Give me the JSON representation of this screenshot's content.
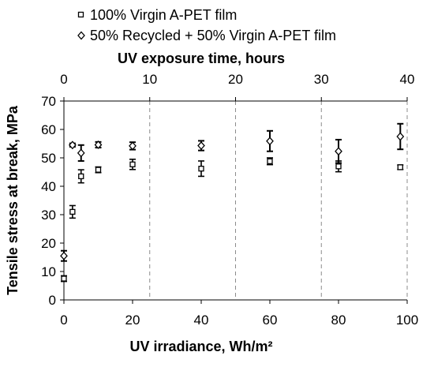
{
  "chart_data": {
    "type": "scatter",
    "xlabel": "UV irradiance, Wh/m²",
    "x2label": "UV exposure time, hours",
    "ylabel": "Tensile stress at break, MPa",
    "xlim": [
      0,
      100
    ],
    "x2lim": [
      0,
      40
    ],
    "ylim": [
      0,
      70
    ],
    "x_ticks": [
      "0",
      "20",
      "40",
      "60",
      "80",
      "100"
    ],
    "x2_ticks": [
      "0",
      "10",
      "20",
      "30",
      "40"
    ],
    "y_ticks": [
      "0",
      "10",
      "20",
      "30",
      "40",
      "50",
      "60",
      "70"
    ],
    "vertical_dashed_lines_hours": [
      10,
      20,
      30,
      40
    ],
    "grid": false,
    "legend_position": "top",
    "series": [
      {
        "name": "100% Virgin A-PET film",
        "marker": "square",
        "x": [
          0,
          2.5,
          5,
          10,
          20,
          40,
          60,
          80,
          98
        ],
        "y": [
          7.5,
          31,
          43.5,
          45.8,
          47.7,
          46.2,
          48.8,
          47,
          46.7
        ],
        "err": [
          1.0,
          2.2,
          2.3,
          1.0,
          1.8,
          2.7,
          1.2,
          1.9,
          0.8
        ]
      },
      {
        "name": "50% Recycled + 50% Virgin A-PET film",
        "marker": "diamond",
        "x": [
          0,
          2.5,
          5,
          10,
          20,
          40,
          60,
          80,
          98
        ],
        "y": [
          15.5,
          54.5,
          51.7,
          54.6,
          54.2,
          54.3,
          55.9,
          52.3,
          57.5
        ],
        "err": [
          1.8,
          0.6,
          2.8,
          1.0,
          1.3,
          1.7,
          3.6,
          4.1,
          4.5
        ]
      }
    ]
  }
}
